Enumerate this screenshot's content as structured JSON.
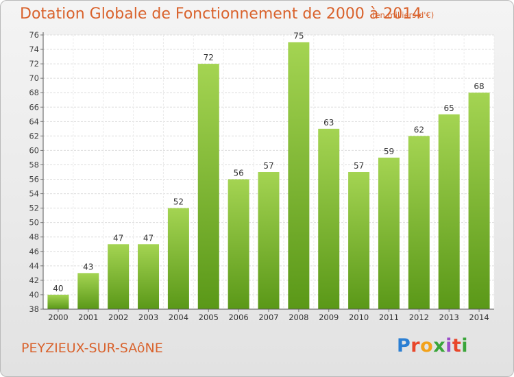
{
  "chart_data": {
    "type": "bar",
    "title": "Dotation Globale de Fonctionnement de 2000 à 2014",
    "subtitle": "(en milliers d'€)",
    "categories": [
      "2000",
      "2001",
      "2002",
      "2003",
      "2004",
      "2005",
      "2006",
      "2007",
      "2008",
      "2009",
      "2010",
      "2011",
      "2012",
      "2013",
      "2014"
    ],
    "values": [
      40,
      43,
      47,
      47,
      52,
      72,
      56,
      57,
      75,
      63,
      57,
      59,
      62,
      65,
      68
    ],
    "ylim": [
      38,
      76
    ],
    "yticks": [
      38,
      40,
      42,
      44,
      46,
      48,
      50,
      52,
      54,
      56,
      58,
      60,
      62,
      64,
      66,
      68,
      70,
      72,
      74,
      76
    ],
    "grid": true,
    "legend": "none",
    "colors": {
      "bar_top": "#9fd04e",
      "bar_bottom": "#5c9a1a",
      "title": "#d9622c"
    }
  },
  "commune": "PEYZIEUX-SUR-SAôNE",
  "logo": {
    "text": "Proxiti",
    "letters": [
      "P",
      "r",
      "o",
      "x",
      "i",
      "t",
      "i"
    ]
  }
}
